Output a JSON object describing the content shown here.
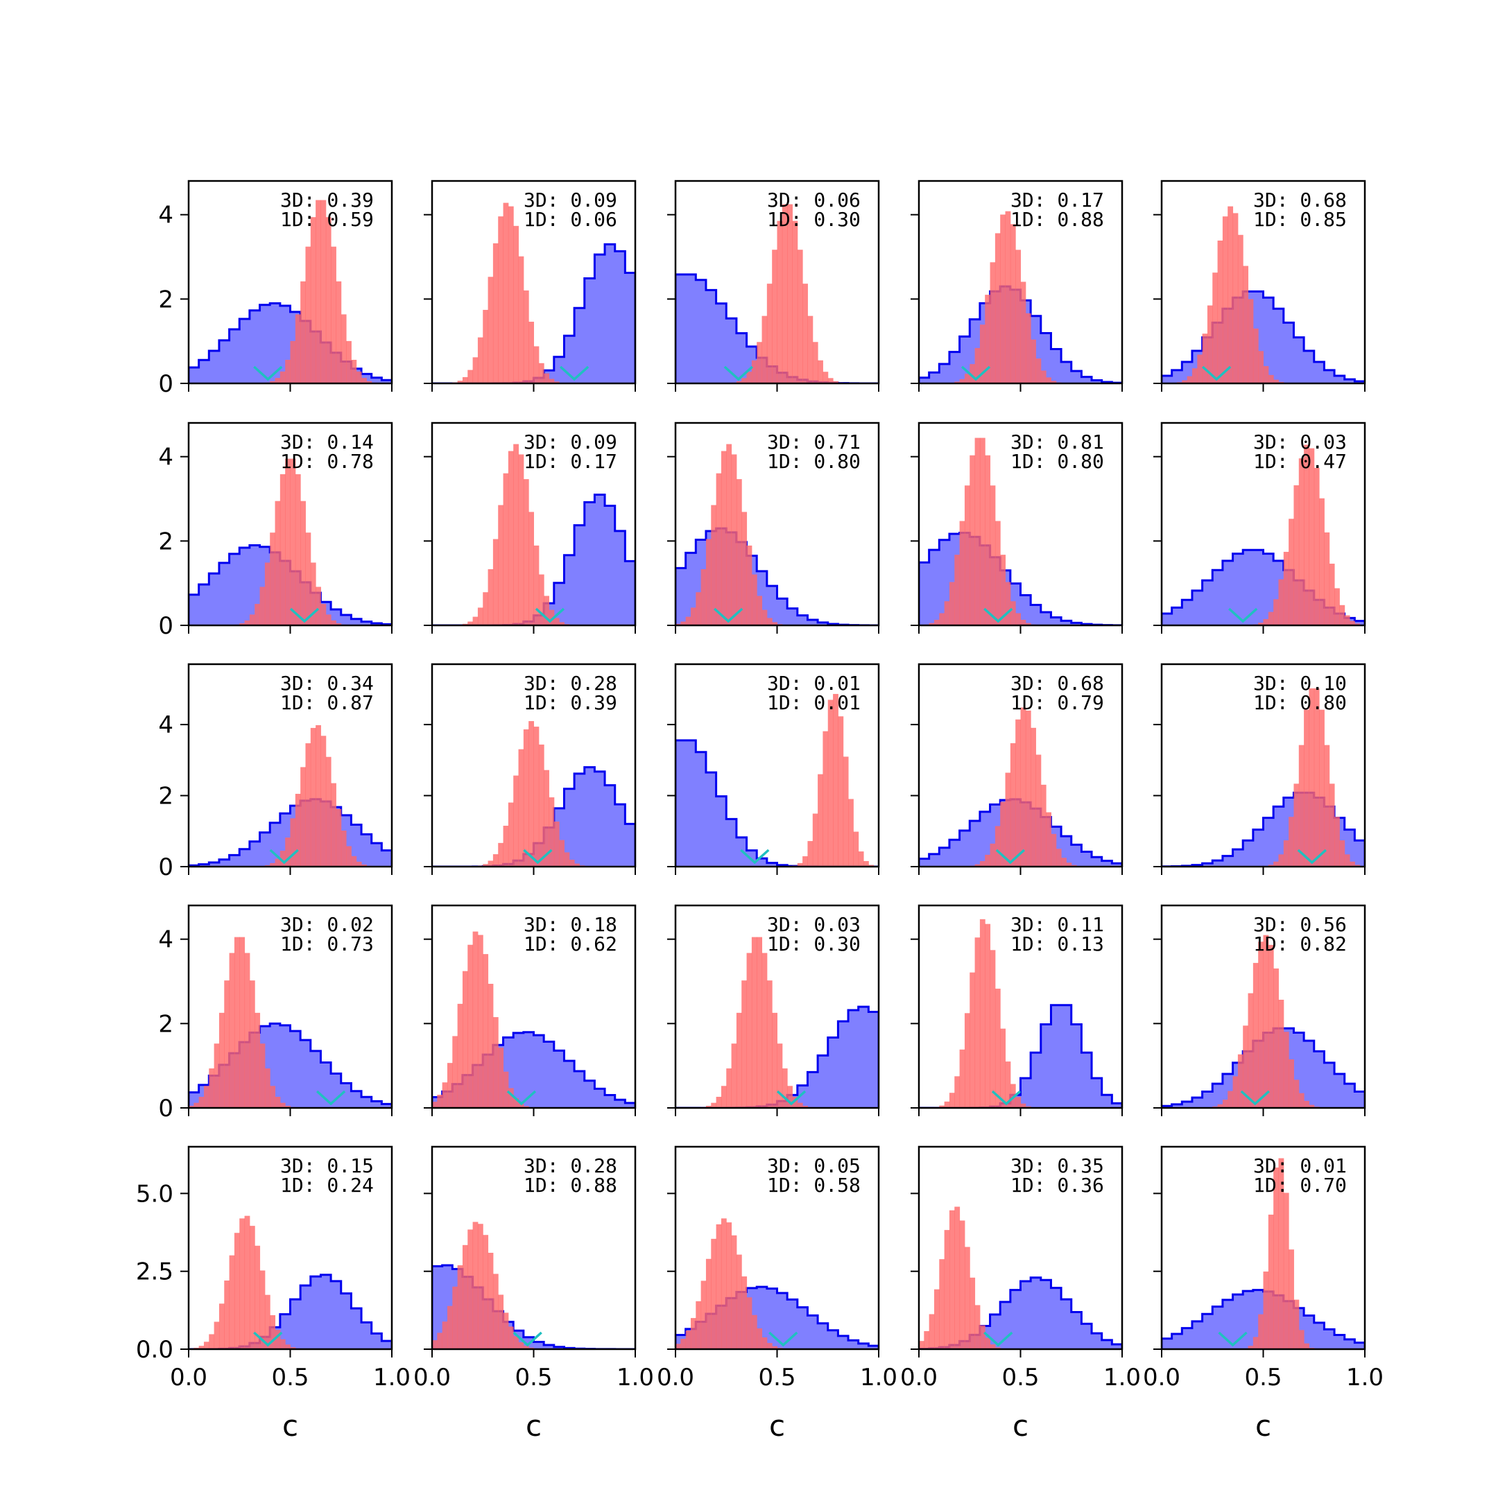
{
  "chart_data": {
    "type": "histogram-grid",
    "rows": 5,
    "cols": 5,
    "xlabel": "c",
    "xlim": [
      0,
      1
    ],
    "x_ticks": [
      "0.0",
      "0.5",
      "1.0"
    ],
    "row_ylims": [
      [
        0,
        4.8
      ],
      [
        0,
        4.8
      ],
      [
        0,
        5.7
      ],
      [
        0,
        4.8
      ],
      [
        0,
        6.5
      ]
    ],
    "row_yticks": [
      {
        "values": [
          0,
          2,
          4
        ],
        "labels": [
          "0",
          "2",
          "4"
        ]
      },
      {
        "values": [
          0,
          2,
          4
        ],
        "labels": [
          "0",
          "2",
          "4"
        ]
      },
      {
        "values": [
          0,
          2,
          4
        ],
        "labels": [
          "0",
          "2",
          "4"
        ]
      },
      {
        "values": [
          0,
          2,
          4
        ],
        "labels": [
          "0",
          "2",
          "4"
        ]
      },
      {
        "values": [
          0,
          2.5,
          5.0
        ],
        "labels": [
          "0.0",
          "2.5",
          "5.0"
        ]
      }
    ],
    "colors": {
      "blue_fill": "#8080ff",
      "blue_edge": "#0000ee",
      "red": "#ff6666",
      "marker": "#20c0c0"
    },
    "panels": [
      {
        "label_3d": "3D: 0.39",
        "label_1d": "1D: 0.59",
        "red": {
          "mean": 0.65,
          "sd": 0.08,
          "peak": 4.4
        },
        "blue": {
          "mean": 0.42,
          "sd": 0.22,
          "peak": 1.9
        },
        "marker": 0.39
      },
      {
        "label_3d": "3D: 0.09",
        "label_1d": "1D: 0.06",
        "red": {
          "mean": 0.37,
          "sd": 0.08,
          "peak": 4.3
        },
        "blue": {
          "mean": 0.88,
          "sd": 0.14,
          "peak": 3.3
        },
        "marker": 0.7
      },
      {
        "label_3d": "3D: 0.06",
        "label_1d": "1D: 0.30",
        "red": {
          "mean": 0.55,
          "sd": 0.08,
          "peak": 4.3
        },
        "blue": {
          "mean": 0.05,
          "sd": 0.22,
          "peak": 2.6
        },
        "marker": 0.31
      },
      {
        "label_3d": "3D: 0.17",
        "label_1d": "1D: 0.88",
        "red": {
          "mean": 0.43,
          "sd": 0.08,
          "peak": 4.1
        },
        "blue": {
          "mean": 0.43,
          "sd": 0.17,
          "peak": 2.3
        },
        "marker": 0.28
      },
      {
        "label_3d": "3D: 0.68",
        "label_1d": "1D: 0.85",
        "red": {
          "mean": 0.34,
          "sd": 0.08,
          "peak": 4.2
        },
        "blue": {
          "mean": 0.45,
          "sd": 0.19,
          "peak": 2.2
        },
        "marker": 0.27
      },
      {
        "label_3d": "3D: 0.14",
        "label_1d": "1D: 0.78",
        "red": {
          "mean": 0.5,
          "sd": 0.08,
          "peak": 4.0
        },
        "blue": {
          "mean": 0.33,
          "sd": 0.22,
          "peak": 1.9
        },
        "marker": 0.57
      },
      {
        "label_3d": "3D: 0.09",
        "label_1d": "1D: 0.17",
        "red": {
          "mean": 0.41,
          "sd": 0.08,
          "peak": 4.3
        },
        "blue": {
          "mean": 0.82,
          "sd": 0.13,
          "peak": 3.1
        },
        "marker": 0.58
      },
      {
        "label_3d": "3D: 0.71",
        "label_1d": "1D: 0.80",
        "red": {
          "mean": 0.26,
          "sd": 0.08,
          "peak": 4.3
        },
        "blue": {
          "mean": 0.22,
          "sd": 0.19,
          "peak": 2.3
        },
        "marker": 0.26
      },
      {
        "label_3d": "3D: 0.81",
        "label_1d": "1D: 0.80",
        "red": {
          "mean": 0.3,
          "sd": 0.08,
          "peak": 4.5
        },
        "blue": {
          "mean": 0.21,
          "sd": 0.21,
          "peak": 2.2
        },
        "marker": 0.39
      },
      {
        "label_3d": "3D: 0.03",
        "label_1d": "1D: 0.47",
        "red": {
          "mean": 0.72,
          "sd": 0.08,
          "peak": 4.3
        },
        "blue": {
          "mean": 0.45,
          "sd": 0.22,
          "peak": 1.8
        },
        "marker": 0.4
      },
      {
        "label_3d": "3D: 0.34",
        "label_1d": "1D: 0.87",
        "red": {
          "mean": 0.63,
          "sd": 0.08,
          "peak": 4.0
        },
        "blue": {
          "mean": 0.62,
          "sd": 0.21,
          "peak": 1.9
        },
        "marker": 0.47
      },
      {
        "label_3d": "3D: 0.28",
        "label_1d": "1D: 0.39",
        "red": {
          "mean": 0.49,
          "sd": 0.08,
          "peak": 4.1
        },
        "blue": {
          "mean": 0.78,
          "sd": 0.15,
          "peak": 2.8
        },
        "marker": 0.52
      },
      {
        "label_3d": "3D: 0.01",
        "label_1d": "1D: 0.01",
        "red": {
          "mean": 0.78,
          "sd": 0.06,
          "peak": 4.9
        },
        "blue": {
          "mean": 0.05,
          "sd": 0.16,
          "peak": 3.6
        },
        "marker": 0.39
      },
      {
        "label_3d": "3D: 0.68",
        "label_1d": "1D: 0.79",
        "red": {
          "mean": 0.52,
          "sd": 0.08,
          "peak": 4.5
        },
        "blue": {
          "mean": 0.46,
          "sd": 0.21,
          "peak": 1.9
        },
        "marker": 0.45
      },
      {
        "label_3d": "3D: 0.10",
        "label_1d": "1D: 0.80",
        "red": {
          "mean": 0.75,
          "sd": 0.07,
          "peak": 5.1
        },
        "blue": {
          "mean": 0.7,
          "sd": 0.19,
          "peak": 2.1
        },
        "marker": 0.74
      },
      {
        "label_3d": "3D: 0.02",
        "label_1d": "1D: 0.73",
        "red": {
          "mean": 0.25,
          "sd": 0.08,
          "peak": 4.1
        },
        "blue": {
          "mean": 0.43,
          "sd": 0.22,
          "peak": 2.0
        },
        "marker": 0.7
      },
      {
        "label_3d": "3D: 0.18",
        "label_1d": "1D: 0.62",
        "red": {
          "mean": 0.22,
          "sd": 0.08,
          "peak": 4.2
        },
        "blue": {
          "mean": 0.46,
          "sd": 0.22,
          "peak": 1.8
        },
        "marker": 0.44
      },
      {
        "label_3d": "3D: 0.03",
        "label_1d": "1D: 0.30",
        "red": {
          "mean": 0.4,
          "sd": 0.08,
          "peak": 4.1
        },
        "blue": {
          "mean": 0.92,
          "sd": 0.17,
          "peak": 2.4
        },
        "marker": 0.57
      },
      {
        "label_3d": "3D: 0.11",
        "label_1d": "1D: 0.13",
        "red": {
          "mean": 0.32,
          "sd": 0.07,
          "peak": 4.5
        },
        "blue": {
          "mean": 0.7,
          "sd": 0.11,
          "peak": 2.5
        },
        "marker": 0.43
      },
      {
        "label_3d": "3D: 0.56",
        "label_1d": "1D: 0.82",
        "red": {
          "mean": 0.51,
          "sd": 0.08,
          "peak": 4.1
        },
        "blue": {
          "mean": 0.6,
          "sd": 0.21,
          "peak": 1.9
        },
        "marker": 0.46
      },
      {
        "label_3d": "3D: 0.15",
        "label_1d": "1D: 0.24",
        "red": {
          "mean": 0.28,
          "sd": 0.08,
          "peak": 4.3
        },
        "blue": {
          "mean": 0.66,
          "sd": 0.15,
          "peak": 2.4
        },
        "marker": 0.39
      },
      {
        "label_3d": "3D: 0.28",
        "label_1d": "1D: 0.88",
        "red": {
          "mean": 0.22,
          "sd": 0.09,
          "peak": 4.1
        },
        "blue": {
          "mean": 0.06,
          "sd": 0.21,
          "peak": 2.7
        },
        "marker": 0.47
      },
      {
        "label_3d": "3D: 0.05",
        "label_1d": "1D: 0.58",
        "red": {
          "mean": 0.24,
          "sd": 0.09,
          "peak": 4.2
        },
        "blue": {
          "mean": 0.42,
          "sd": 0.23,
          "peak": 2.0
        },
        "marker": 0.53
      },
      {
        "label_3d": "3D: 0.35",
        "label_1d": "1D: 0.36",
        "red": {
          "mean": 0.18,
          "sd": 0.07,
          "peak": 4.6
        },
        "blue": {
          "mean": 0.58,
          "sd": 0.17,
          "peak": 2.3
        },
        "marker": 0.39
      },
      {
        "label_3d": "3D: 0.01",
        "label_1d": "1D: 0.70",
        "red": {
          "mean": 0.58,
          "sd": 0.05,
          "peak": 6.2
        },
        "blue": {
          "mean": 0.47,
          "sd": 0.24,
          "peak": 1.9
        },
        "marker": 0.35
      }
    ]
  }
}
